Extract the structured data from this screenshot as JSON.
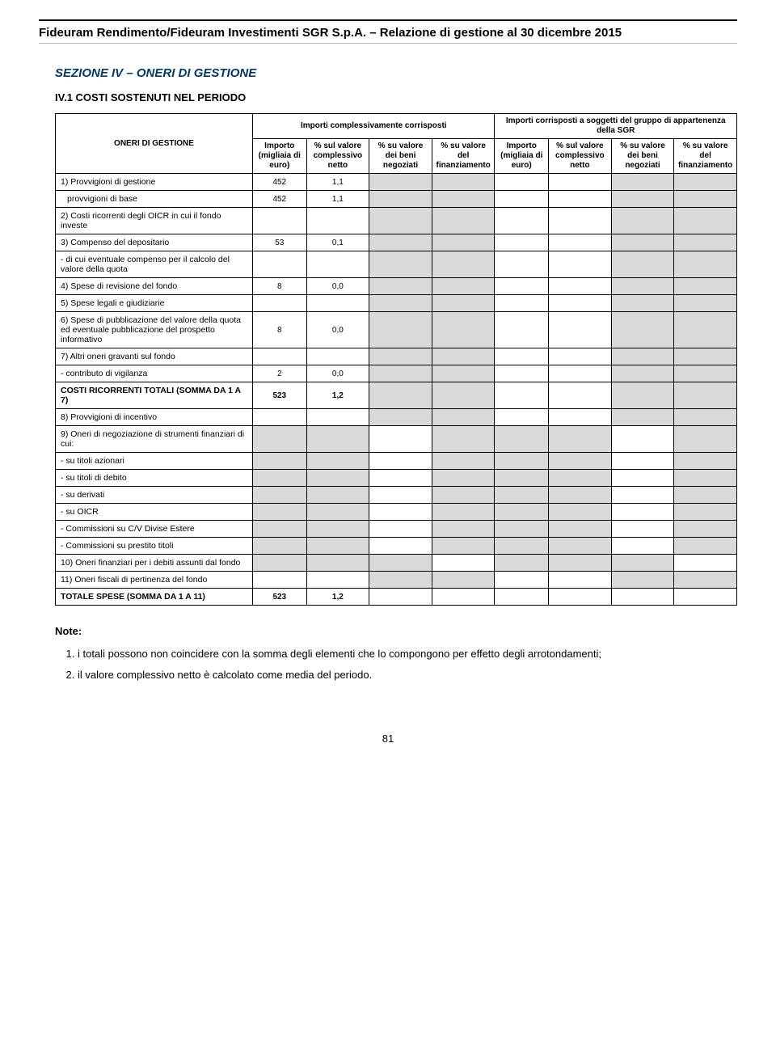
{
  "header": {
    "title": "Fideuram Rendimento/Fideuram Investimenti SGR S.p.A. – Relazione di gestione al 30 dicembre 2015"
  },
  "section": {
    "title": "SEZIONE IV – ONERI DI GESTIONE",
    "subtitle": "IV.1 COSTI SOSTENUTI NEL PERIODO"
  },
  "table": {
    "group1_header": "Importi complessivamente corrisposti",
    "group2_header": "Importi corrisposti a soggetti del gruppo di appartenenza della SGR",
    "row_header": "ONERI DI GESTIONE",
    "col_headers": [
      "Importo (migliaia di euro)",
      "% sul valore complessivo netto",
      "% su valore dei beni negoziati",
      "% su valore del finanziamento",
      "Importo (migliaia di euro)",
      "% sul valore complessivo netto",
      "% su valore dei beni negoziati",
      "% su valore del finanziamento"
    ],
    "rows": [
      {
        "label": "1) Provvigioni di gestione",
        "v": [
          "452",
          "1,1",
          "",
          "",
          "",
          "",
          "",
          ""
        ],
        "grey": [
          false,
          false,
          true,
          true,
          false,
          false,
          true,
          true
        ]
      },
      {
        "label": "provvigioni di base",
        "v": [
          "452",
          "1,1",
          "",
          "",
          "",
          "",
          "",
          ""
        ],
        "grey": [
          false,
          false,
          true,
          true,
          false,
          false,
          true,
          true
        ],
        "indent": true
      },
      {
        "label": "2) Costi ricorrenti degli OICR in cui il fondo investe",
        "v": [
          "",
          "",
          "",
          "",
          "",
          "",
          "",
          ""
        ],
        "grey": [
          false,
          false,
          true,
          true,
          false,
          false,
          true,
          true
        ]
      },
      {
        "label": "3) Compenso del depositario",
        "v": [
          "53",
          "0,1",
          "",
          "",
          "",
          "",
          "",
          ""
        ],
        "grey": [
          false,
          false,
          true,
          true,
          false,
          false,
          true,
          true
        ]
      },
      {
        "label": "- di cui eventuale compenso per il calcolo del valore della quota",
        "v": [
          "",
          "",
          "",
          "",
          "",
          "",
          "",
          ""
        ],
        "grey": [
          false,
          false,
          true,
          true,
          false,
          false,
          true,
          true
        ]
      },
      {
        "label": "4) Spese di revisione del fondo",
        "v": [
          "8",
          "0,0",
          "",
          "",
          "",
          "",
          "",
          ""
        ],
        "grey": [
          false,
          false,
          true,
          true,
          false,
          false,
          true,
          true
        ]
      },
      {
        "label": "5) Spese legali e giudiziarie",
        "v": [
          "",
          "",
          "",
          "",
          "",
          "",
          "",
          ""
        ],
        "grey": [
          false,
          false,
          true,
          true,
          false,
          false,
          true,
          true
        ]
      },
      {
        "label": "6) Spese di pubblicazione del valore della quota ed eventuale pubblicazione del prospetto informativo",
        "v": [
          "8",
          "0,0",
          "",
          "",
          "",
          "",
          "",
          ""
        ],
        "grey": [
          false,
          false,
          true,
          true,
          false,
          false,
          true,
          true
        ]
      },
      {
        "label": "7) Altri oneri gravanti sul fondo",
        "v": [
          "",
          "",
          "",
          "",
          "",
          "",
          "",
          ""
        ],
        "grey": [
          false,
          false,
          true,
          true,
          false,
          false,
          true,
          true
        ]
      },
      {
        "label": "- contributo di vigilanza",
        "v": [
          "2",
          "0,0",
          "",
          "",
          "",
          "",
          "",
          ""
        ],
        "grey": [
          false,
          false,
          true,
          true,
          false,
          false,
          true,
          true
        ]
      },
      {
        "label": "COSTI RICORRENTI TOTALI (SOMMA DA 1 A 7)",
        "v": [
          "523",
          "1,2",
          "",
          "",
          "",
          "",
          "",
          ""
        ],
        "grey": [
          false,
          false,
          true,
          true,
          false,
          false,
          true,
          true
        ],
        "bold": true
      },
      {
        "label": "8) Provvigioni di incentivo",
        "v": [
          "",
          "",
          "",
          "",
          "",
          "",
          "",
          ""
        ],
        "grey": [
          false,
          false,
          true,
          true,
          false,
          false,
          true,
          true
        ]
      },
      {
        "label": "9) Oneri di negoziazione di strumenti finanziari di cui:",
        "v": [
          "",
          "",
          "",
          "",
          "",
          "",
          "",
          ""
        ],
        "grey": [
          true,
          true,
          false,
          true,
          true,
          true,
          false,
          true
        ]
      },
      {
        "label": "- su titoli azionari",
        "v": [
          "",
          "",
          "",
          "",
          "",
          "",
          "",
          ""
        ],
        "grey": [
          true,
          true,
          false,
          true,
          true,
          true,
          false,
          true
        ]
      },
      {
        "label": "- su titoli di debito",
        "v": [
          "",
          "",
          "",
          "",
          "",
          "",
          "",
          ""
        ],
        "grey": [
          true,
          true,
          false,
          true,
          true,
          true,
          false,
          true
        ]
      },
      {
        "label": "- su derivati",
        "v": [
          "",
          "",
          "",
          "",
          "",
          "",
          "",
          ""
        ],
        "grey": [
          true,
          true,
          false,
          true,
          true,
          true,
          false,
          true
        ]
      },
      {
        "label": "- su OICR",
        "v": [
          "",
          "",
          "",
          "",
          "",
          "",
          "",
          ""
        ],
        "grey": [
          true,
          true,
          false,
          true,
          true,
          true,
          false,
          true
        ]
      },
      {
        "label": "- Commissioni su C/V Divise Estere",
        "v": [
          "",
          "",
          "",
          "",
          "",
          "",
          "",
          ""
        ],
        "grey": [
          true,
          true,
          false,
          true,
          true,
          true,
          false,
          true
        ]
      },
      {
        "label": "- Commissioni su prestito titoli",
        "v": [
          "",
          "",
          "",
          "",
          "",
          "",
          "",
          ""
        ],
        "grey": [
          true,
          true,
          false,
          true,
          true,
          true,
          false,
          true
        ]
      },
      {
        "label": "10) Oneri finanziari per i debiti assunti dal fondo",
        "v": [
          "",
          "",
          "",
          "",
          "",
          "",
          "",
          ""
        ],
        "grey": [
          true,
          true,
          true,
          false,
          true,
          true,
          true,
          false
        ]
      },
      {
        "label": "11) Oneri fiscali di pertinenza del fondo",
        "v": [
          "",
          "",
          "",
          "",
          "",
          "",
          "",
          ""
        ],
        "grey": [
          false,
          false,
          true,
          true,
          false,
          false,
          true,
          true
        ]
      },
      {
        "label": "TOTALE SPESE (SOMMA DA 1 A 11)",
        "v": [
          "523",
          "1,2",
          "",
          "",
          "",
          "",
          "",
          ""
        ],
        "grey": [
          false,
          false,
          false,
          false,
          false,
          false,
          false,
          false
        ],
        "bold": true
      }
    ]
  },
  "notes": {
    "heading": "Note:",
    "items": [
      "i totali possono non coincidere con la somma degli elementi che lo compongono per effetto degli arrotondamenti;",
      "il valore complessivo netto è calcolato come media del periodo."
    ]
  },
  "page_number": "81",
  "style": {
    "grey_fill": "#d9d9d9",
    "border_color": "#000000",
    "section_color": "#003a6b",
    "font_family": "Arial"
  }
}
